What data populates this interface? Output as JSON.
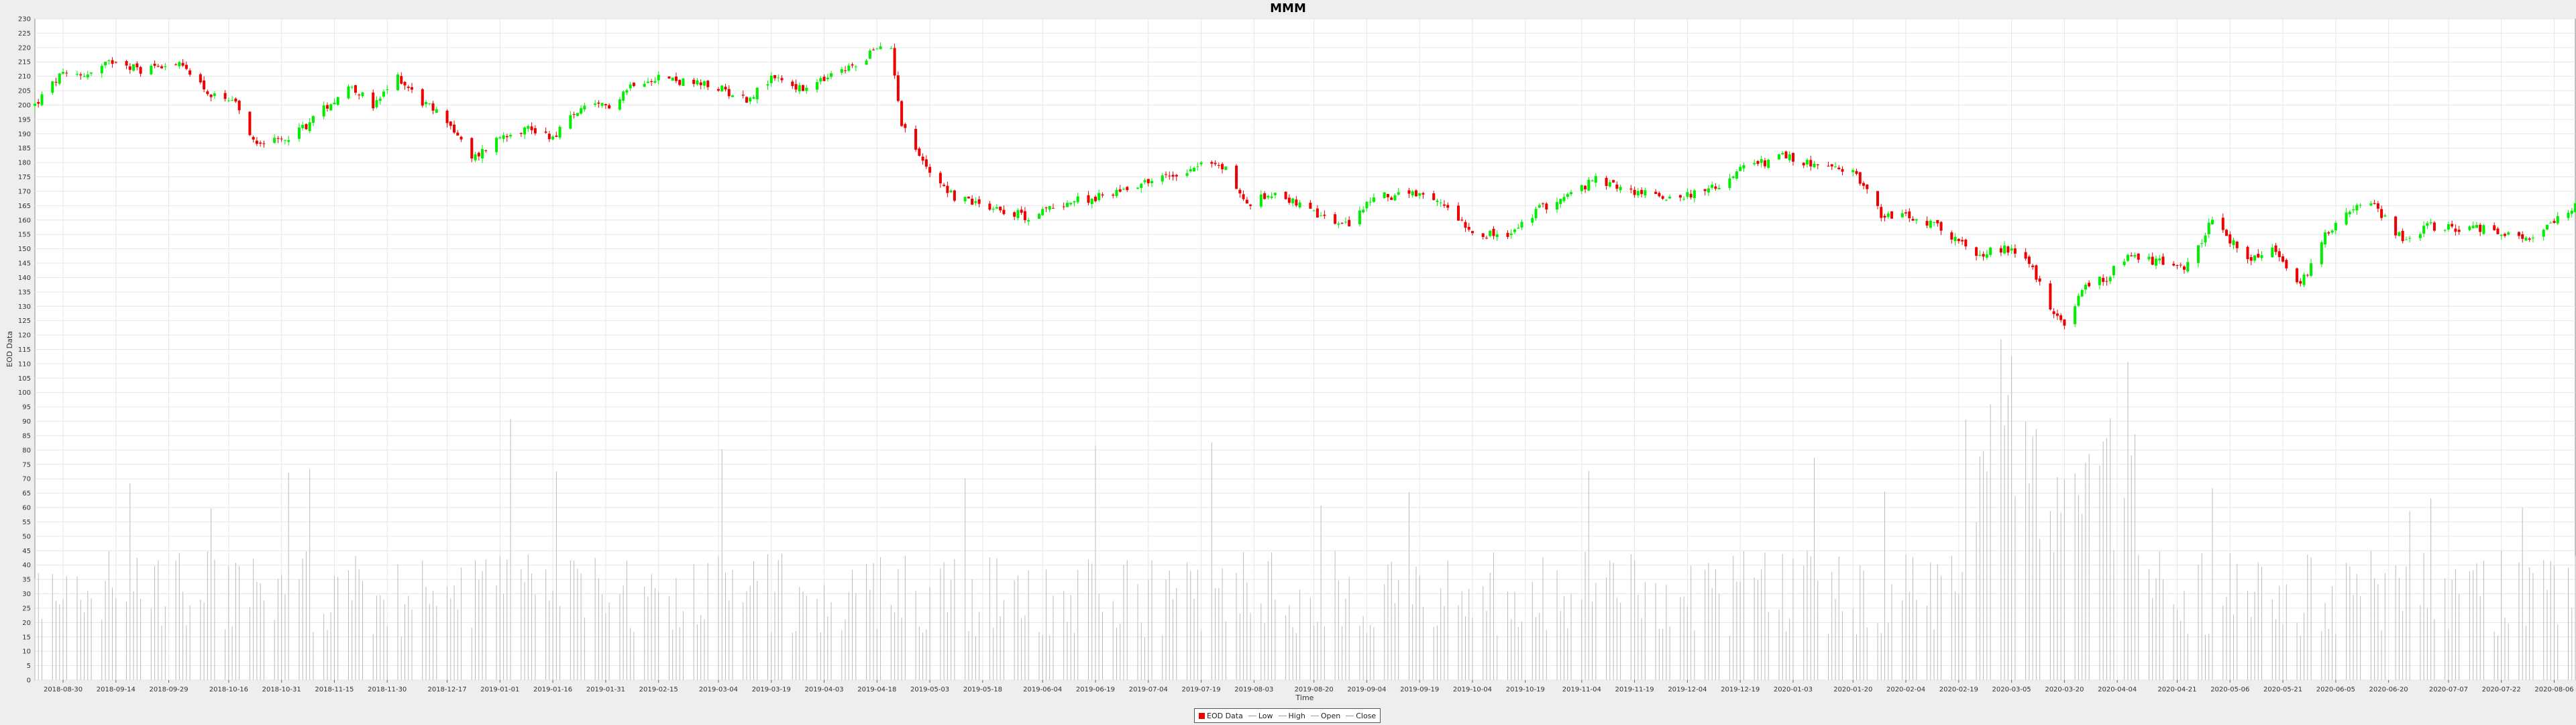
{
  "chart_data": {
    "type": "candlestick",
    "title": "MMM",
    "xlabel": "Time",
    "ylabel": "EOD Data",
    "ylim": [
      0,
      230
    ],
    "y_ticks": [
      0,
      5,
      10,
      15,
      20,
      25,
      30,
      35,
      40,
      45,
      50,
      55,
      60,
      65,
      70,
      75,
      80,
      85,
      90,
      95,
      100,
      105,
      110,
      115,
      120,
      125,
      130,
      135,
      140,
      145,
      150,
      155,
      160,
      165,
      170,
      175,
      180,
      185,
      190,
      195,
      200,
      205,
      210,
      215,
      220,
      225,
      230
    ],
    "x_range": [
      "2018-08-22",
      "2020-08-12"
    ],
    "x_ticks": [
      "2018-08-30",
      "2018-09-14",
      "2018-09-29",
      "2018-10-16",
      "2018-10-31",
      "2018-11-15",
      "2018-11-30",
      "2018-12-17",
      "2019-01-01",
      "2019-01-16",
      "2019-01-31",
      "2019-02-15",
      "2019-03-04",
      "2019-03-19",
      "2019-04-03",
      "2019-04-18",
      "2019-05-03",
      "2019-05-18",
      "2019-06-04",
      "2019-06-19",
      "2019-07-04",
      "2019-07-19",
      "2019-08-03",
      "2019-08-20",
      "2019-09-04",
      "2019-09-19",
      "2019-10-04",
      "2019-10-19",
      "2019-11-04",
      "2019-11-19",
      "2019-12-04",
      "2019-12-19",
      "2020-01-03",
      "2020-01-20",
      "2020-02-04",
      "2020-02-19",
      "2020-03-05",
      "2020-03-20",
      "2020-04-04",
      "2020-04-21",
      "2020-05-06",
      "2020-05-21",
      "2020-06-05",
      "2020-06-20",
      "2020-07-07",
      "2020-07-22",
      "2020-08-06"
    ],
    "grid": true,
    "legend_position": "bottom-center",
    "colors": {
      "up": "#00ee00",
      "down": "#ee0000",
      "volume": "#bbbbbb",
      "grid": "#e6e6e6",
      "background": "#ffffff"
    },
    "close_series": {
      "x": [
        "2018-08-22",
        "2018-08-29",
        "2018-09-07",
        "2018-09-14",
        "2018-09-21",
        "2018-09-29",
        "2018-10-05",
        "2018-10-11",
        "2018-10-18",
        "2018-10-23",
        "2018-10-30",
        "2018-11-07",
        "2018-11-13",
        "2018-11-20",
        "2018-11-26",
        "2018-12-03",
        "2018-12-10",
        "2018-12-17",
        "2018-12-24",
        "2019-01-02",
        "2019-01-09",
        "2019-01-16",
        "2019-01-23",
        "2019-02-01",
        "2019-02-08",
        "2019-02-15",
        "2019-02-22",
        "2019-03-04",
        "2019-03-12",
        "2019-03-20",
        "2019-03-28",
        "2019-04-05",
        "2019-04-12",
        "2019-04-17",
        "2019-04-22",
        "2019-04-25",
        "2019-05-01",
        "2019-05-10",
        "2019-05-20",
        "2019-05-31",
        "2019-06-10",
        "2019-06-20",
        "2019-07-02",
        "2019-07-12",
        "2019-07-19",
        "2019-07-26",
        "2019-08-01",
        "2019-08-09",
        "2019-08-20",
        "2019-08-29",
        "2019-09-06",
        "2019-09-16",
        "2019-09-27",
        "2019-10-04",
        "2019-10-14",
        "2019-10-23",
        "2019-11-01",
        "2019-11-08",
        "2019-11-18",
        "2019-11-29",
        "2019-12-10",
        "2019-12-20",
        "2019-12-31",
        "2020-01-13",
        "2020-01-21",
        "2020-01-28",
        "2020-02-05",
        "2020-02-14",
        "2020-02-24",
        "2020-03-02",
        "2020-03-09",
        "2020-03-16",
        "2020-03-20",
        "2020-03-25",
        "2020-04-01",
        "2020-04-07",
        "2020-04-17",
        "2020-04-24",
        "2020-05-01",
        "2020-05-11",
        "2020-05-18",
        "2020-05-26",
        "2020-06-02",
        "2020-06-08",
        "2020-06-16",
        "2020-06-24",
        "2020-07-01",
        "2020-07-10",
        "2020-07-20",
        "2020-07-27",
        "2020-08-03",
        "2020-08-12"
      ],
      "values": [
        200,
        210,
        211,
        216,
        212,
        215,
        212,
        203,
        200,
        188,
        187,
        193,
        200,
        207,
        199,
        210,
        201,
        195,
        181,
        190,
        192,
        189,
        198,
        200,
        208,
        210,
        208,
        206,
        202,
        210,
        205,
        210,
        214,
        219,
        220,
        194,
        180,
        168,
        165,
        161,
        166,
        168,
        173,
        176,
        180,
        178,
        165,
        170,
        162,
        158,
        168,
        169,
        165,
        156,
        154,
        164,
        169,
        174,
        170,
        168,
        170,
        178,
        182,
        178,
        176,
        162,
        161,
        157,
        148,
        150,
        148,
        130,
        122,
        136,
        140,
        148,
        145,
        144,
        160,
        146,
        150,
        137,
        155,
        163,
        165,
        153,
        158,
        157,
        157,
        153,
        156,
        165
      ]
    },
    "ohlc_series": {
      "x_start": "2018-08-22",
      "x_end": "2020-08-12",
      "trading_days": 500,
      "fields": [
        "open",
        "high",
        "low",
        "close",
        "volume_millions"
      ],
      "up_color": "#00ee00",
      "down_color": "#ee0000"
    }
  },
  "legend": {
    "items": [
      {
        "label": "EOD Data",
        "color": "#ee0000",
        "kind": "box"
      },
      {
        "label": "Low",
        "color": "#999999",
        "kind": "line"
      },
      {
        "label": "High",
        "color": "#999999",
        "kind": "line"
      },
      {
        "label": "Open",
        "color": "#999999",
        "kind": "line"
      },
      {
        "label": "Close",
        "color": "#999999",
        "kind": "line"
      }
    ]
  }
}
